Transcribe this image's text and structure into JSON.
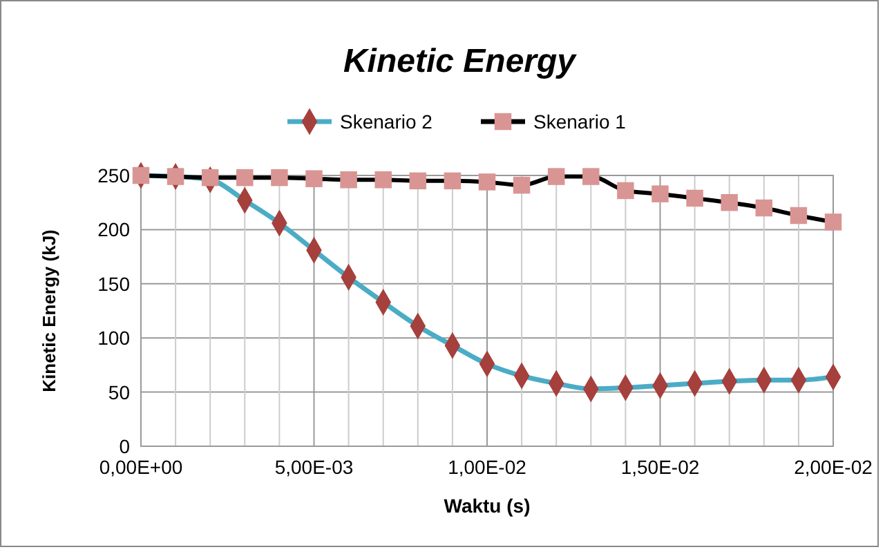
{
  "chart_data": {
    "type": "line",
    "title": "Kinetic Energy",
    "xlabel": "Waktu (s)",
    "ylabel": "Kinetic Energy (kJ)",
    "categories": [
      "0,00E+00",
      null,
      null,
      null,
      null,
      "5,00E-03",
      null,
      null,
      null,
      null,
      "1,00E-02",
      null,
      null,
      null,
      null,
      "1,50E-02",
      null,
      null,
      null,
      null,
      "2,00E-02"
    ],
    "series": [
      {
        "name": "Skenario 2",
        "color": "#4bacc6",
        "colors": [
          "#a5403c",
          "#a5403c",
          "#a5403c",
          "#a5403c",
          "#a5403c",
          "#a5403c",
          "#a5403c",
          "#a5403c",
          "#a5403c",
          "#a5403c",
          "#a5403c",
          "#a5403c",
          "#a5403c",
          "#a5403c",
          "#a5403c",
          "#a5403c",
          "#a5403c",
          "#a5403c",
          "#a5403c",
          "#a5403c",
          "#a5403c"
        ],
        "marker": "diamond",
        "values": [
          250,
          249,
          246,
          227,
          206,
          181,
          156,
          133,
          111,
          93,
          76,
          65,
          58,
          53,
          54,
          56,
          58,
          60,
          61,
          61,
          64
        ]
      },
      {
        "name": "Skenario 1",
        "color": "#000000",
        "colors": [
          "#d99594",
          "#d99594",
          "#d99594",
          "#d99594",
          "#d99594",
          "#d99594",
          "#d99594",
          "#d99594",
          "#d99594",
          "#d99594",
          "#d99594",
          "#d99594",
          "#d99594",
          "#d99594",
          "#d99594",
          "#d99594",
          "#d99594",
          "#d99594",
          "#d99594",
          "#d99594",
          "#d99594"
        ],
        "marker": "square",
        "values": [
          250,
          249,
          248,
          248,
          248,
          247,
          246,
          246,
          245,
          245,
          244,
          241,
          249,
          249,
          236,
          233,
          229,
          225,
          220,
          213,
          207
        ]
      }
    ],
    "ylim": [
      0,
      250
    ],
    "yticks": [
      0,
      50,
      100,
      150,
      200,
      250
    ],
    "grid": true,
    "legend": "top"
  }
}
